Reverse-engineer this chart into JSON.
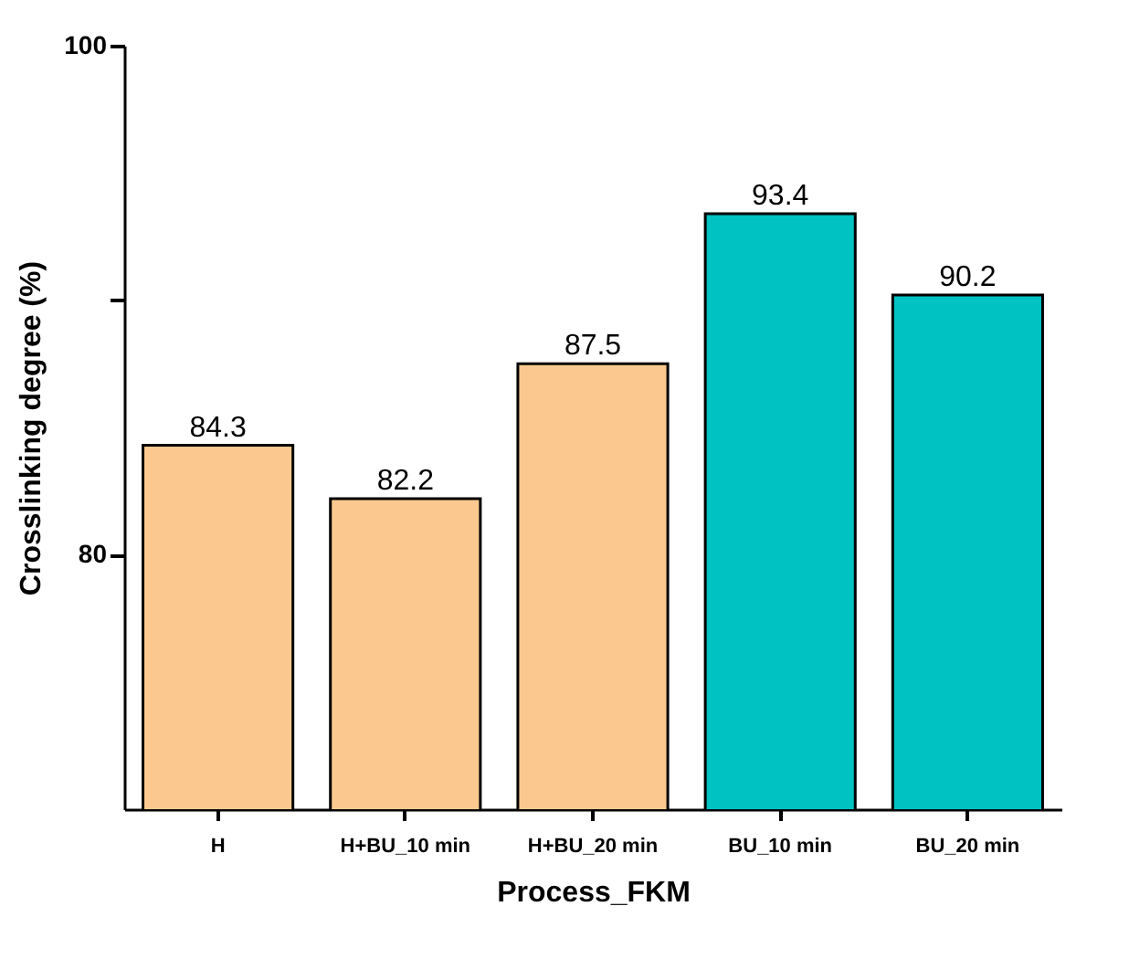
{
  "chart_data": {
    "type": "bar",
    "xlabel": "Process_FKM",
    "ylabel": "Crosslinking degree (%)",
    "categories": [
      "H",
      "H+BU_10 min",
      "H+BU_20 min",
      "BU_10 min",
      "BU_20 min"
    ],
    "values": [
      84.3,
      82.2,
      87.5,
      93.4,
      90.2
    ],
    "colors": [
      "#fbc98f",
      "#fbc98f",
      "#fbc98f",
      "#00c2c2",
      "#00c2c2"
    ],
    "ylim": [
      70,
      100
    ],
    "yticks": [
      80,
      {
        "value": 90,
        "label": null
      },
      100
    ],
    "data_labels": true,
    "grid": false
  }
}
